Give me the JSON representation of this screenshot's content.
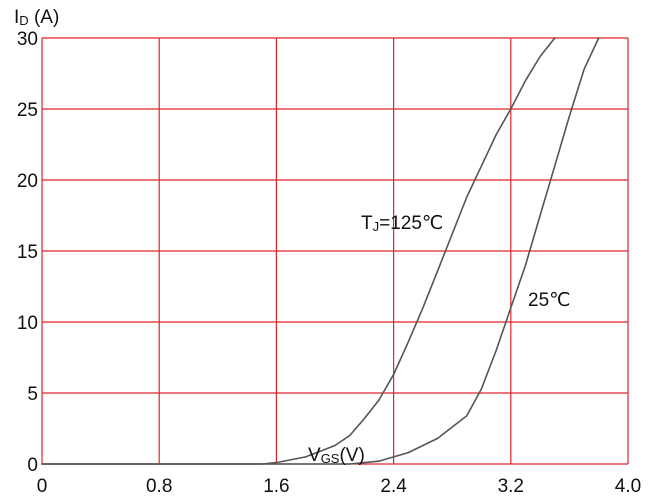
{
  "chart_data": {
    "type": "line",
    "ylabel_main": "I",
    "ylabel_sub": "D",
    "ylabel_unit": " (A)",
    "xlabel_main": "V",
    "xlabel_sub": "GS",
    "xlabel_unit": "(V)",
    "xlim": [
      0,
      4.0
    ],
    "ylim": [
      0,
      30
    ],
    "x_ticks": [
      {
        "value": 0,
        "label": "0"
      },
      {
        "value": 0.8,
        "label": "0.8"
      },
      {
        "value": 1.6,
        "label": "1.6"
      },
      {
        "value": 2.4,
        "label": "2.4"
      },
      {
        "value": 3.2,
        "label": "3.2"
      },
      {
        "value": 4.0,
        "label": "4.0"
      }
    ],
    "y_ticks": [
      {
        "value": 0,
        "label": "0"
      },
      {
        "value": 5,
        "label": "5"
      },
      {
        "value": 10,
        "label": "10"
      },
      {
        "value": 15,
        "label": "15"
      },
      {
        "value": 20,
        "label": "20"
      },
      {
        "value": 25,
        "label": "25"
      },
      {
        "value": 30,
        "label": "30"
      }
    ],
    "grid": true,
    "colors": {
      "grid": "#e0252b",
      "curve": "#555555",
      "text": "#111111"
    },
    "series": [
      {
        "label_main": "T",
        "label_sub": "J",
        "label_rest": "=125℃",
        "points": [
          [
            0,
            0
          ],
          [
            1.5,
            0
          ],
          [
            1.6,
            0.1
          ],
          [
            1.8,
            0.5
          ],
          [
            2.0,
            1.3
          ],
          [
            2.1,
            2.0
          ],
          [
            2.2,
            3.2
          ],
          [
            2.3,
            4.5
          ],
          [
            2.4,
            6.3
          ],
          [
            2.5,
            8.6
          ],
          [
            2.6,
            11.0
          ],
          [
            2.7,
            13.6
          ],
          [
            2.8,
            16.2
          ],
          [
            2.9,
            18.8
          ],
          [
            3.0,
            21.0
          ],
          [
            3.1,
            23.2
          ],
          [
            3.2,
            25.0
          ],
          [
            3.3,
            27.0
          ],
          [
            3.4,
            28.7
          ],
          [
            3.5,
            30.0
          ]
        ]
      },
      {
        "label_main": "25℃",
        "label_sub": "",
        "label_rest": "",
        "points": [
          [
            0,
            0
          ],
          [
            2.1,
            0
          ],
          [
            2.3,
            0.2
          ],
          [
            2.5,
            0.8
          ],
          [
            2.7,
            1.8
          ],
          [
            2.9,
            3.4
          ],
          [
            3.0,
            5.3
          ],
          [
            3.1,
            8.0
          ],
          [
            3.2,
            11.0
          ],
          [
            3.3,
            14.0
          ],
          [
            3.4,
            17.5
          ],
          [
            3.5,
            21.0
          ],
          [
            3.6,
            24.5
          ],
          [
            3.7,
            27.8
          ],
          [
            3.8,
            30.0
          ]
        ]
      }
    ]
  }
}
